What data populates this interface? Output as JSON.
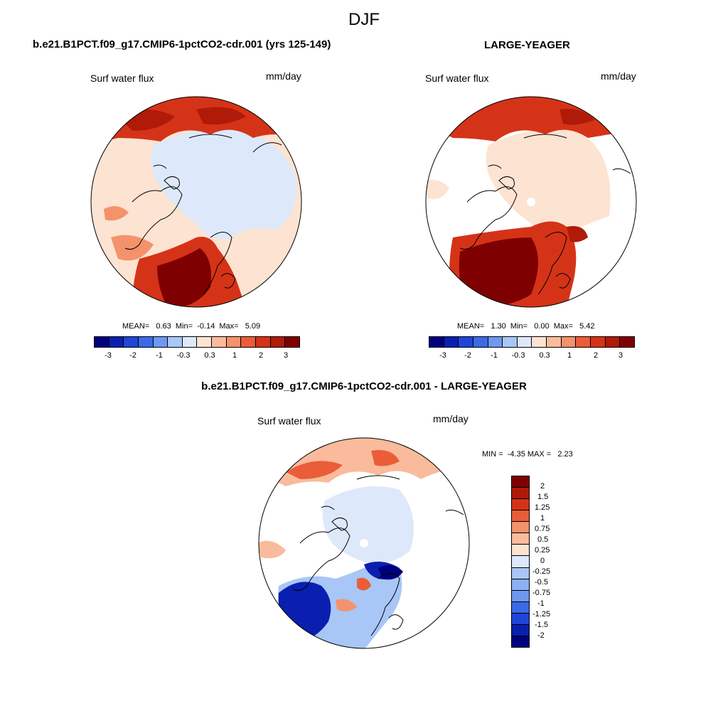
{
  "page_title": "DJF",
  "panels": {
    "left": {
      "title": "b.e21.B1PCT.f09_g17.CMIP6-1pctCO2-cdr.001 (yrs 125-149)",
      "variable": "Surf water flux",
      "units": "mm/day",
      "stats": {
        "mean": "0.63",
        "min": "-0.14",
        "max": "5.09"
      },
      "stats_text": "MEAN=   0.63  Min=  -0.14  Max=   5.09"
    },
    "right": {
      "title": "LARGE-YEAGER",
      "variable": "Surf water flux",
      "units": "mm/day",
      "stats": {
        "mean": "1.30",
        "min": "0.00",
        "max": "5.42"
      },
      "stats_text": "MEAN=   1.30  Min=   0.00  Max=   5.42"
    },
    "diff": {
      "title": "b.e21.B1PCT.f09_g17.CMIP6-1pctCO2-cdr.001 - LARGE-YEAGER",
      "variable": "Surf water flux",
      "units": "mm/day",
      "stats_text": "MIN =  -4.35 MAX =   2.23"
    }
  },
  "colors": {
    "abs_scale": [
      "#00007f",
      "#0a1fb0",
      "#1f45d6",
      "#3a6ae8",
      "#6e98f0",
      "#a8c6f6",
      "#dde9fb",
      "#fde3d2",
      "#f9bb9c",
      "#f4926b",
      "#ea5d38",
      "#d53318",
      "#b01a08",
      "#7f0000"
    ],
    "diff_scale": [
      "#7f0000",
      "#b01a08",
      "#d53318",
      "#ea5d38",
      "#f4926b",
      "#f9bb9c",
      "#fde3d2",
      "#dde9fb",
      "#a8c6f6",
      "#8bb0f2",
      "#6e98f0",
      "#3a6ae8",
      "#1f45d6",
      "#0a1fb0",
      "#00007f"
    ]
  },
  "chart_data": [
    {
      "type": "heatmap",
      "title": "b.e21.B1PCT.f09_g17.CMIP6-1pctCO2-cdr.001 (yrs 125-149)",
      "subtitle": "Surf water flux",
      "units": "mm/day",
      "colorbar_ticks": [
        "-3",
        "-2",
        "-1",
        "-0.3",
        "0.3",
        "1",
        "2",
        "3"
      ],
      "mean": 0.63,
      "min": -0.14,
      "max": 5.09
    },
    {
      "type": "heatmap",
      "title": "LARGE-YEAGER",
      "subtitle": "Surf water flux",
      "units": "mm/day",
      "colorbar_ticks": [
        "-3",
        "-2",
        "-1",
        "-0.3",
        "0.3",
        "1",
        "2",
        "3"
      ],
      "mean": 1.3,
      "min": 0.0,
      "max": 5.42
    },
    {
      "type": "heatmap",
      "title": "b.e21.B1PCT.f09_g17.CMIP6-1pctCO2-cdr.001 - LARGE-YEAGER",
      "subtitle": "Surf water flux",
      "units": "mm/day",
      "colorbar_ticks": [
        "2",
        "1.5",
        "1.25",
        "1",
        "0.75",
        "0.5",
        "0.25",
        "0",
        "-0.25",
        "-0.5",
        "-0.75",
        "-1",
        "-1.25",
        "-1.5",
        "-2"
      ],
      "min": -4.35,
      "max": 2.23
    }
  ]
}
